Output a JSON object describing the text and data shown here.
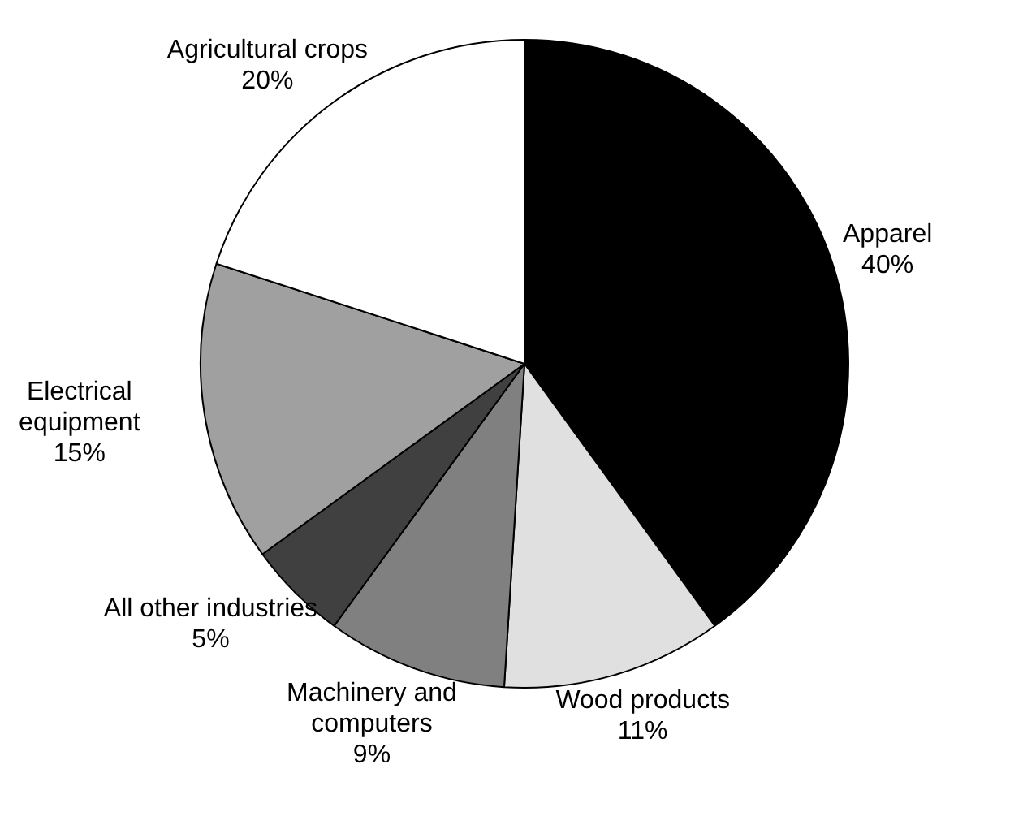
{
  "chart_data": {
    "type": "pie",
    "categories": [
      "Apparel",
      "Wood products",
      "Machinery and computers",
      "All other industries",
      "Electrical equipment",
      "Agricultural crops"
    ],
    "values": [
      40,
      11,
      9,
      5,
      15,
      20
    ],
    "colors": [
      "#000000",
      "#e0e0e0",
      "#808080",
      "#404040",
      "#a0a0a0",
      "#ffffff"
    ],
    "value_labels": [
      "40%",
      "11%",
      "9%",
      "5%",
      "15%",
      "20%"
    ],
    "legend": false
  }
}
